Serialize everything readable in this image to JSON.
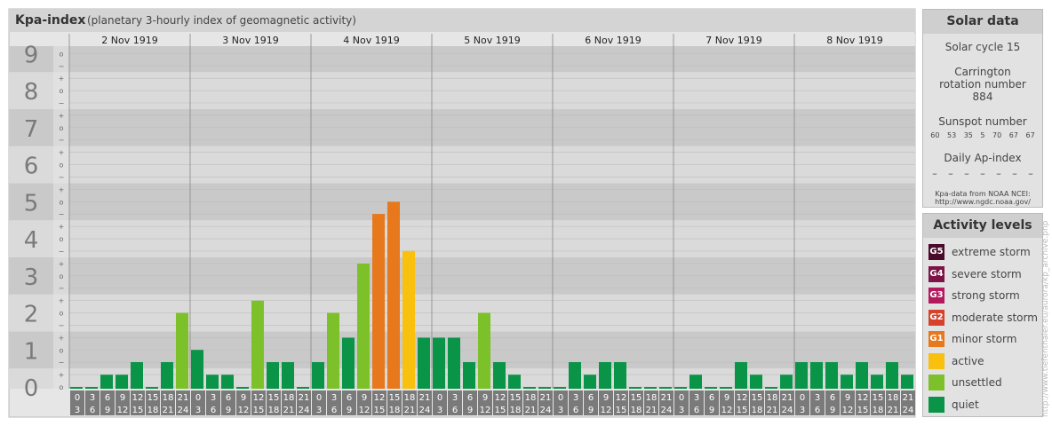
{
  "chart_data": {
    "type": "bar",
    "title": "Kpa-index",
    "subtitle": "(planetary 3-hourly index of geomagnetic activity)",
    "days": [
      "2 Nov 1919",
      "3 Nov 1919",
      "4 Nov 1919",
      "5 Nov 1919",
      "6 Nov 1919",
      "7 Nov 1919",
      "8 Nov 1919"
    ],
    "hour_starts": [
      0,
      3,
      6,
      9,
      12,
      15,
      18,
      21
    ],
    "hour_ends": [
      3,
      6,
      9,
      12,
      15,
      18,
      21,
      24
    ],
    "values": [
      0,
      0,
      0.33,
      0.33,
      0.67,
      0,
      0.67,
      2,
      1,
      0.33,
      0.33,
      0,
      2.33,
      0.67,
      0.67,
      0,
      0.67,
      2,
      1.33,
      3.33,
      4.67,
      5,
      3.67,
      1.33,
      1.33,
      1.33,
      0.67,
      2,
      0.67,
      0.33,
      0,
      0,
      0,
      0.67,
      0.33,
      0.67,
      0.67,
      0,
      0,
      0,
      0,
      0.33,
      0,
      0,
      0.67,
      0.33,
      0,
      0.33,
      0.67,
      0.67,
      0.67,
      0.33,
      0.67,
      0.33,
      0.67,
      0.33
    ],
    "colors": [
      "#0a9447",
      "#0a9447",
      "#0a9447",
      "#0a9447",
      "#0a9447",
      "#0a9447",
      "#0a9447",
      "#7dc12a",
      "#0a9447",
      "#0a9447",
      "#0a9447",
      "#0a9447",
      "#7dc12a",
      "#0a9447",
      "#0a9447",
      "#0a9447",
      "#0a9447",
      "#7dc12a",
      "#0a9447",
      "#7dc12a",
      "#e8781c",
      "#e8781c",
      "#f9c00d",
      "#0a9447",
      "#0a9447",
      "#0a9447",
      "#0a9447",
      "#7dc12a",
      "#0a9447",
      "#0a9447",
      "#0a9447",
      "#0a9447",
      "#0a9447",
      "#0a9447",
      "#0a9447",
      "#0a9447",
      "#0a9447",
      "#0a9447",
      "#0a9447",
      "#0a9447",
      "#0a9447",
      "#0a9447",
      "#0a9447",
      "#0a9447",
      "#0a9447",
      "#0a9447",
      "#0a9447",
      "#0a9447",
      "#0a9447",
      "#0a9447",
      "#0a9447",
      "#0a9447",
      "#0a9447",
      "#0a9447",
      "#0a9447",
      "#0a9447"
    ],
    "ylim": [
      0,
      9.2
    ],
    "yticks": [
      0,
      1,
      2,
      3,
      4,
      5,
      6,
      7,
      8,
      9
    ],
    "ysub_labels": [
      "−",
      "o",
      "+"
    ]
  },
  "solar_data": {
    "title": "Solar data",
    "cycle": "Solar cycle 15",
    "rotation": "Carrington rotation number 884",
    "sunspot_title": "Sunspot number",
    "sunspots": [
      60,
      53,
      35,
      5,
      70,
      67,
      67
    ],
    "ap_title": "Daily Ap-index",
    "ap": [
      "–",
      "–",
      "–",
      "–",
      "–",
      "–",
      "–"
    ],
    "source": "Kpa-data from NOAA NCEI:",
    "source_url": "http://www.ngdc.noaa.gov/"
  },
  "activity_levels": {
    "title": "Activity levels",
    "items": [
      {
        "badge": "G5",
        "label": "extreme storm",
        "color": "#4a0a2a"
      },
      {
        "badge": "G4",
        "label": "severe storm",
        "color": "#7d1346"
      },
      {
        "badge": "G3",
        "label": "strong storm",
        "color": "#b5195d"
      },
      {
        "badge": "G2",
        "label": "moderate storm",
        "color": "#d6432a"
      },
      {
        "badge": "G1",
        "label": "minor storm",
        "color": "#e8781c"
      },
      {
        "label": "active",
        "color": "#f9c00d"
      },
      {
        "label": "unsettled",
        "color": "#7dc12a"
      },
      {
        "label": "quiet",
        "color": "#0a9447"
      }
    ]
  },
  "side_url": "http://www.tiefenthaler.eu/aurora/kp_archive.php"
}
